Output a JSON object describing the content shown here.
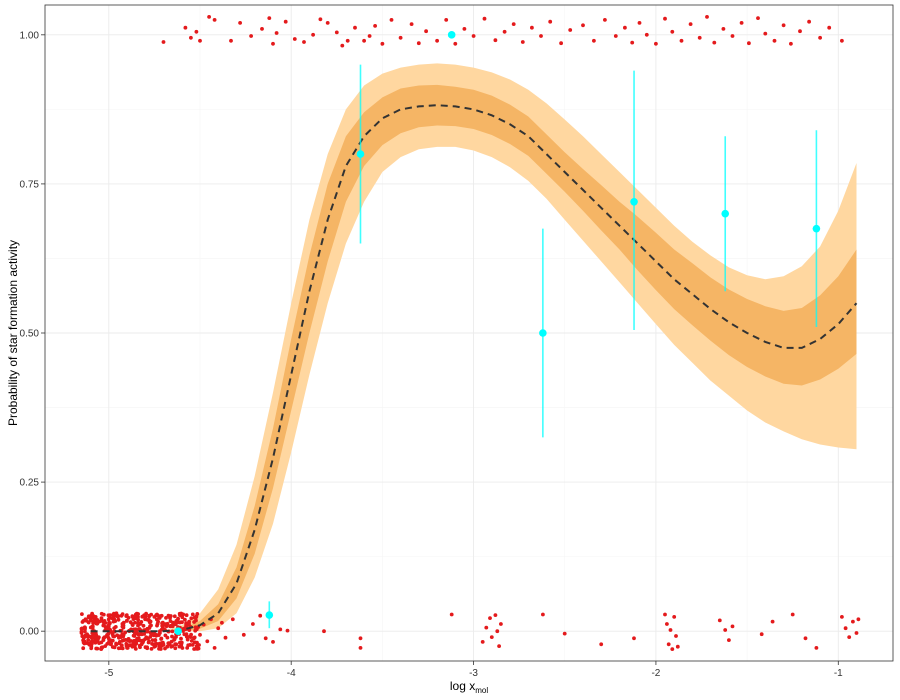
{
  "chart_data": {
    "type": "scatter",
    "xlabel": "log x",
    "xlabel_subscript": "mol",
    "ylabel": "Probability of star formation activity",
    "xlim": [
      -5.35,
      -0.7
    ],
    "ylim": [
      -0.05,
      1.05
    ],
    "grid": true,
    "x_ticks": [
      -5,
      -4,
      -3,
      -2,
      -1
    ],
    "x_tick_labels": [
      "-5",
      "-4",
      "-3",
      "-2",
      "-1"
    ],
    "y_ticks": [
      0,
      0.25,
      0.5,
      0.75,
      1
    ],
    "y_tick_labels": [
      "0.00",
      "0.25",
      "0.50",
      "0.75",
      "1.00"
    ],
    "colors": {
      "observations": "#e41a1c",
      "binned_means": "#00ffff",
      "outer_band": "#ffd7a0",
      "inner_band": "#f5b565",
      "fit_line": "#333333",
      "grid_major": "#ebebeb",
      "grid_minor": "#f5f5f5",
      "panel_border": "#333333"
    },
    "fit_curve": {
      "x": [
        -5.1,
        -5.0,
        -4.9,
        -4.8,
        -4.7,
        -4.6,
        -4.5,
        -4.4,
        -4.3,
        -4.2,
        -4.1,
        -4.0,
        -3.9,
        -3.8,
        -3.7,
        -3.6,
        -3.5,
        -3.4,
        -3.3,
        -3.2,
        -3.1,
        -3.0,
        -2.9,
        -2.8,
        -2.7,
        -2.6,
        -2.5,
        -2.4,
        -2.3,
        -2.2,
        -2.1,
        -2.0,
        -1.9,
        -1.8,
        -1.7,
        -1.6,
        -1.5,
        -1.4,
        -1.3,
        -1.2,
        -1.1,
        -1.0,
        -0.9
      ],
      "y": [
        0.0,
        0.0,
        0.0,
        0.0,
        0.0,
        0.002,
        0.01,
        0.03,
        0.08,
        0.17,
        0.29,
        0.43,
        0.57,
        0.69,
        0.78,
        0.83,
        0.86,
        0.875,
        0.88,
        0.882,
        0.88,
        0.875,
        0.865,
        0.85,
        0.83,
        0.8,
        0.77,
        0.74,
        0.71,
        0.68,
        0.65,
        0.62,
        0.59,
        0.565,
        0.54,
        0.518,
        0.5,
        0.485,
        0.475,
        0.475,
        0.49,
        0.515,
        0.55
      ],
      "inner_lo": [
        0.0,
        0.0,
        0.0,
        0.0,
        0.0,
        0.0,
        0.004,
        0.017,
        0.055,
        0.13,
        0.24,
        0.37,
        0.5,
        0.62,
        0.72,
        0.78,
        0.815,
        0.835,
        0.845,
        0.848,
        0.847,
        0.842,
        0.832,
        0.817,
        0.797,
        0.767,
        0.737,
        0.705,
        0.672,
        0.64,
        0.605,
        0.572,
        0.54,
        0.513,
        0.487,
        0.463,
        0.443,
        0.427,
        0.415,
        0.412,
        0.422,
        0.44,
        0.465
      ],
      "inner_hi": [
        0.0,
        0.0,
        0.0,
        0.0,
        0.0,
        0.004,
        0.017,
        0.045,
        0.107,
        0.21,
        0.34,
        0.49,
        0.63,
        0.75,
        0.83,
        0.87,
        0.895,
        0.91,
        0.915,
        0.916,
        0.913,
        0.908,
        0.898,
        0.883,
        0.863,
        0.833,
        0.803,
        0.775,
        0.748,
        0.72,
        0.695,
        0.668,
        0.64,
        0.617,
        0.593,
        0.573,
        0.557,
        0.545,
        0.537,
        0.542,
        0.563,
        0.595,
        0.64
      ],
      "outer_lo": [
        0.0,
        0.0,
        0.0,
        0.0,
        0.0,
        0.0,
        0.0,
        0.005,
        0.03,
        0.09,
        0.18,
        0.3,
        0.43,
        0.55,
        0.65,
        0.72,
        0.77,
        0.795,
        0.808,
        0.812,
        0.812,
        0.806,
        0.795,
        0.778,
        0.755,
        0.725,
        0.69,
        0.655,
        0.62,
        0.585,
        0.55,
        0.515,
        0.48,
        0.45,
        0.42,
        0.395,
        0.37,
        0.35,
        0.335,
        0.322,
        0.313,
        0.308,
        0.305
      ],
      "outer_hi": [
        0.0,
        0.0,
        0.0,
        0.0,
        0.0,
        0.01,
        0.03,
        0.07,
        0.145,
        0.26,
        0.4,
        0.55,
        0.69,
        0.8,
        0.875,
        0.915,
        0.935,
        0.945,
        0.95,
        0.952,
        0.95,
        0.945,
        0.937,
        0.925,
        0.908,
        0.885,
        0.858,
        0.83,
        0.8,
        0.77,
        0.74,
        0.71,
        0.68,
        0.653,
        0.63,
        0.61,
        0.597,
        0.59,
        0.595,
        0.612,
        0.645,
        0.705,
        0.785
      ]
    },
    "binned_means": [
      {
        "x": -4.62,
        "y": 0.0,
        "lo": 0.0,
        "hi": 0.0
      },
      {
        "x": -4.12,
        "y": 0.027,
        "lo": 0.005,
        "hi": 0.05
      },
      {
        "x": -3.62,
        "y": 0.8,
        "lo": 0.65,
        "hi": 0.95
      },
      {
        "x": -3.12,
        "y": 1.0,
        "lo": 1.0,
        "hi": 1.0
      },
      {
        "x": -2.62,
        "y": 0.5,
        "lo": 0.325,
        "hi": 0.675
      },
      {
        "x": -2.12,
        "y": 0.72,
        "lo": 0.505,
        "hi": 0.94
      },
      {
        "x": -1.62,
        "y": 0.7,
        "lo": 0.57,
        "hi": 0.83
      },
      {
        "x": -1.12,
        "y": 0.675,
        "lo": 0.51,
        "hi": 0.84
      }
    ],
    "observations_zero": [
      [
        -5.15,
        0.004
      ],
      [
        -5.12,
        -0.02
      ],
      [
        -5.1,
        0.018
      ],
      [
        -5.08,
        0.0
      ],
      [
        -5.06,
        -0.01
      ],
      [
        -5.04,
        0.022
      ],
      [
        -5.02,
        -0.025
      ],
      [
        -5.0,
        0.01
      ],
      [
        -4.98,
        -0.005
      ],
      [
        -4.96,
        0.026
      ],
      [
        -4.94,
        -0.018
      ],
      [
        -4.92,
        0.006
      ],
      [
        -4.9,
        -0.028
      ],
      [
        -4.88,
        0.015
      ],
      [
        -4.86,
        -0.008
      ],
      [
        -4.84,
        0.024
      ],
      [
        -4.82,
        -0.022
      ],
      [
        -4.8,
        0.002
      ],
      [
        -4.78,
        0.019
      ],
      [
        -4.76,
        -0.015
      ],
      [
        -4.74,
        0.027
      ],
      [
        -4.72,
        -0.003
      ],
      [
        -4.7,
        0.012
      ],
      [
        -4.68,
        -0.026
      ],
      [
        -4.66,
        0.008
      ],
      [
        -4.64,
        -0.012
      ],
      [
        -4.62,
        0.021
      ],
      [
        -4.6,
        -0.019
      ],
      [
        -4.58,
        0.003
      ],
      [
        -4.56,
        0.016
      ],
      [
        -4.54,
        -0.023
      ],
      [
        -4.52,
        0.025
      ],
      [
        -4.5,
        -0.006
      ],
      [
        -4.48,
        0.011
      ],
      [
        -4.46,
        -0.017
      ],
      [
        -4.44,
        0.02
      ],
      [
        -4.42,
        -0.028
      ],
      [
        -4.4,
        0.005
      ],
      [
        -4.38,
        0.014
      ],
      [
        -4.36,
        -0.011
      ],
      [
        -5.11,
        0.025
      ],
      [
        -5.03,
        -0.015
      ],
      [
        -4.97,
        0.02
      ],
      [
        -4.91,
        -0.002
      ],
      [
        -4.85,
        0.028
      ],
      [
        -4.79,
        -0.027
      ],
      [
        -4.73,
        0.016
      ],
      [
        -4.67,
        -0.02
      ],
      [
        -4.61,
        0.027
      ],
      [
        -4.55,
        -0.01
      ],
      [
        -5.07,
        0.013
      ],
      [
        -4.99,
        -0.022
      ],
      [
        -4.93,
        0.001
      ],
      [
        -4.87,
        -0.025
      ],
      [
        -4.81,
        0.009
      ],
      [
        -4.75,
        0.024
      ],
      [
        -4.69,
        -0.007
      ],
      [
        -4.63,
        0.017
      ],
      [
        -4.57,
        -0.028
      ],
      [
        -4.51,
        0.007
      ],
      [
        -4.32,
        0.02
      ],
      [
        -4.26,
        -0.006
      ],
      [
        -4.21,
        0.012
      ],
      [
        -4.17,
        0.026
      ],
      [
        -4.14,
        -0.012
      ],
      [
        -4.1,
        -0.018
      ],
      [
        -4.06,
        0.003
      ],
      [
        -4.02,
        0.001
      ],
      [
        -3.82,
        0.0
      ],
      [
        -3.62,
        -0.012
      ],
      [
        -3.62,
        -0.028
      ],
      [
        -3.12,
        0.028
      ],
      [
        -2.95,
        -0.018
      ],
      [
        -2.93,
        0.006
      ],
      [
        -2.91,
        0.022
      ],
      [
        -2.9,
        -0.01
      ],
      [
        -2.88,
        0.027
      ],
      [
        -2.87,
        0.0
      ],
      [
        -2.86,
        -0.025
      ],
      [
        -2.85,
        0.012
      ],
      [
        -2.62,
        0.028
      ],
      [
        -2.5,
        -0.004
      ],
      [
        -2.3,
        -0.022
      ],
      [
        -2.12,
        -0.012
      ],
      [
        -1.95,
        0.028
      ],
      [
        -1.94,
        0.012
      ],
      [
        -1.93,
        -0.022
      ],
      [
        -1.92,
        0.002
      ],
      [
        -1.91,
        -0.03
      ],
      [
        -1.9,
        0.024
      ],
      [
        -1.89,
        -0.008
      ],
      [
        -1.88,
        -0.026
      ],
      [
        -1.65,
        0.018
      ],
      [
        -1.62,
        0.002
      ],
      [
        -1.6,
        -0.015
      ],
      [
        -1.58,
        0.008
      ],
      [
        -1.42,
        -0.005
      ],
      [
        -1.36,
        0.016
      ],
      [
        -1.25,
        0.028
      ],
      [
        -1.18,
        -0.012
      ],
      [
        -1.12,
        -0.028
      ],
      [
        -0.98,
        0.024
      ],
      [
        -0.96,
        0.005
      ],
      [
        -0.94,
        -0.01
      ],
      [
        -0.92,
        0.016
      ],
      [
        -0.9,
        -0.003
      ],
      [
        -0.89,
        0.02
      ]
    ],
    "observations_one": [
      [
        -4.7,
        0.988
      ],
      [
        -4.58,
        1.012
      ],
      [
        -4.55,
        0.995
      ],
      [
        -4.52,
        1.005
      ],
      [
        -4.5,
        0.99
      ],
      [
        -4.45,
        1.03
      ],
      [
        -4.42,
        1.025
      ],
      [
        -4.33,
        0.99
      ],
      [
        -4.28,
        1.02
      ],
      [
        -4.22,
        0.998
      ],
      [
        -4.16,
        1.01
      ],
      [
        -4.12,
        1.028
      ],
      [
        -4.1,
        0.985
      ],
      [
        -4.08,
        1.003
      ],
      [
        -4.03,
        1.022
      ],
      [
        -3.98,
        0.993
      ],
      [
        -3.93,
        0.988
      ],
      [
        -3.88,
        1.0
      ],
      [
        -3.84,
        1.026
      ],
      [
        -3.8,
        1.02
      ],
      [
        -3.75,
        1.004
      ],
      [
        -3.72,
        0.982
      ],
      [
        -3.69,
        0.99
      ],
      [
        -3.65,
        1.012
      ],
      [
        -3.6,
        0.99
      ],
      [
        -3.57,
        0.998
      ],
      [
        -3.54,
        1.015
      ],
      [
        -3.5,
        0.985
      ],
      [
        -3.45,
        1.025
      ],
      [
        -3.4,
        0.995
      ],
      [
        -3.34,
        1.018
      ],
      [
        -3.3,
        0.986
      ],
      [
        -3.26,
        1.006
      ],
      [
        -3.2,
        0.99
      ],
      [
        -3.15,
        1.025
      ],
      [
        -3.1,
        0.985
      ],
      [
        -3.05,
        1.01
      ],
      [
        -3.0,
        0.998
      ],
      [
        -2.94,
        1.027
      ],
      [
        -2.88,
        0.991
      ],
      [
        -2.83,
        1.005
      ],
      [
        -2.78,
        1.018
      ],
      [
        -2.73,
        0.988
      ],
      [
        -2.68,
        1.012
      ],
      [
        -2.63,
        0.998
      ],
      [
        -2.58,
        1.022
      ],
      [
        -2.52,
        0.986
      ],
      [
        -2.47,
        1.008
      ],
      [
        -2.4,
        1.016
      ],
      [
        -2.34,
        0.99
      ],
      [
        -2.28,
        1.025
      ],
      [
        -2.22,
        0.998
      ],
      [
        -2.17,
        1.012
      ],
      [
        -2.13,
        0.987
      ],
      [
        -2.09,
        1.02
      ],
      [
        -2.05,
        1.0
      ],
      [
        -2.0,
        0.985
      ],
      [
        -1.95,
        1.027
      ],
      [
        -1.91,
        1.005
      ],
      [
        -1.86,
        0.99
      ],
      [
        -1.81,
        1.018
      ],
      [
        -1.76,
        0.995
      ],
      [
        -1.72,
        1.03
      ],
      [
        -1.68,
        0.987
      ],
      [
        -1.63,
        1.01
      ],
      [
        -1.58,
        0.998
      ],
      [
        -1.53,
        1.02
      ],
      [
        -1.49,
        0.986
      ],
      [
        -1.44,
        1.028
      ],
      [
        -1.4,
        1.002
      ],
      [
        -1.35,
        0.99
      ],
      [
        -1.3,
        1.016
      ],
      [
        -1.26,
        0.985
      ],
      [
        -1.21,
        1.006
      ],
      [
        -1.16,
        1.022
      ],
      [
        -1.1,
        0.995
      ],
      [
        -1.05,
        1.012
      ],
      [
        -0.98,
        0.99
      ]
    ]
  }
}
